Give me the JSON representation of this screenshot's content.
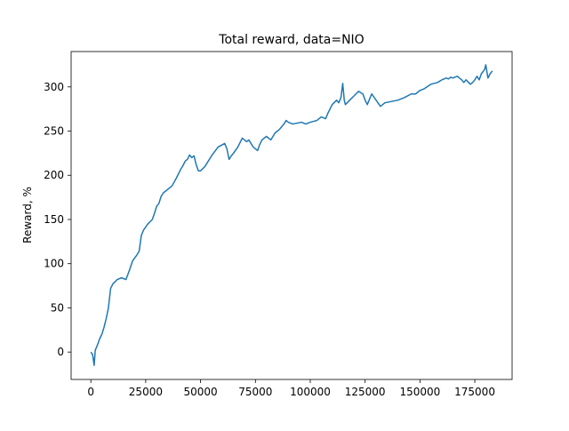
{
  "chart_data": {
    "type": "line",
    "title": "Total reward, data=NIO",
    "xlabel": "",
    "ylabel": "Reward, %",
    "xlim": [
      -9000,
      192000
    ],
    "ylim": [
      -31,
      340
    ],
    "x_ticks": [
      0,
      25000,
      50000,
      75000,
      100000,
      125000,
      150000,
      175000
    ],
    "x_tick_labels": [
      "0",
      "25000",
      "50000",
      "75000",
      "100000",
      "125000",
      "150000",
      "175000"
    ],
    "y_ticks": [
      0,
      50,
      100,
      150,
      200,
      250,
      300
    ],
    "y_tick_labels": [
      "0",
      "50",
      "100",
      "150",
      "200",
      "250",
      "300"
    ],
    "grid": false,
    "legend": "none",
    "series": [
      {
        "name": "",
        "color": "#1f77b4",
        "x": [
          0,
          800,
          1500,
          2000,
          3000,
          4000,
          5000,
          6000,
          7000,
          8000,
          9000,
          10000,
          12000,
          14000,
          16000,
          17500,
          19000,
          21000,
          22000,
          23000,
          24000,
          26000,
          28000,
          29000,
          30000,
          31000,
          32000,
          33000,
          35000,
          37000,
          39000,
          41000,
          42000,
          43000,
          44000,
          45000,
          46000,
          47000,
          48000,
          49000,
          50000,
          52000,
          55000,
          58000,
          61000,
          62000,
          63000,
          64000,
          65000,
          67000,
          69000,
          71000,
          72000,
          74000,
          76000,
          77000,
          78000,
          80000,
          82000,
          84000,
          86000,
          88000,
          89000,
          90000,
          92000,
          94000,
          96000,
          98000,
          100000,
          103000,
          105000,
          107000,
          108000,
          110000,
          112000,
          113000,
          114000,
          114800,
          115500,
          116000,
          118000,
          120000,
          122000,
          124000,
          125000,
          126000,
          127000,
          128000,
          130000,
          132000,
          133000,
          134000,
          136000,
          140000,
          143000,
          146000,
          148000,
          150000,
          152000,
          155000,
          158000,
          160000,
          162000,
          163000,
          164000,
          165000,
          167000,
          168000,
          169000,
          170000,
          171000,
          173000,
          174000,
          175000,
          176000,
          177000,
          178000,
          179000,
          179500,
          180000,
          181000,
          182000,
          183000
        ],
        "y": [
          0,
          -3,
          -15,
          2,
          8,
          15,
          20,
          28,
          38,
          50,
          72,
          77,
          82,
          84,
          82,
          92,
          103,
          110,
          114,
          132,
          138,
          145,
          150,
          157,
          165,
          168,
          176,
          180,
          184,
          188,
          197,
          207,
          211,
          216,
          218,
          223,
          220,
          222,
          212,
          205,
          205,
          210,
          222,
          232,
          236,
          230,
          218,
          222,
          225,
          232,
          242,
          238,
          240,
          232,
          228,
          235,
          240,
          244,
          240,
          248,
          252,
          258,
          262,
          260,
          258,
          259,
          260,
          258,
          260,
          262,
          266,
          264,
          270,
          280,
          285,
          282,
          288,
          304,
          285,
          280,
          285,
          290,
          295,
          292,
          285,
          280,
          286,
          292,
          285,
          278,
          280,
          282,
          283,
          285,
          288,
          292,
          292,
          296,
          298,
          303,
          305,
          308,
          310,
          309,
          311,
          310,
          312,
          310,
          308,
          305,
          308,
          303,
          305,
          308,
          312,
          308,
          315,
          318,
          320,
          325,
          310,
          315,
          318
        ]
      }
    ]
  }
}
